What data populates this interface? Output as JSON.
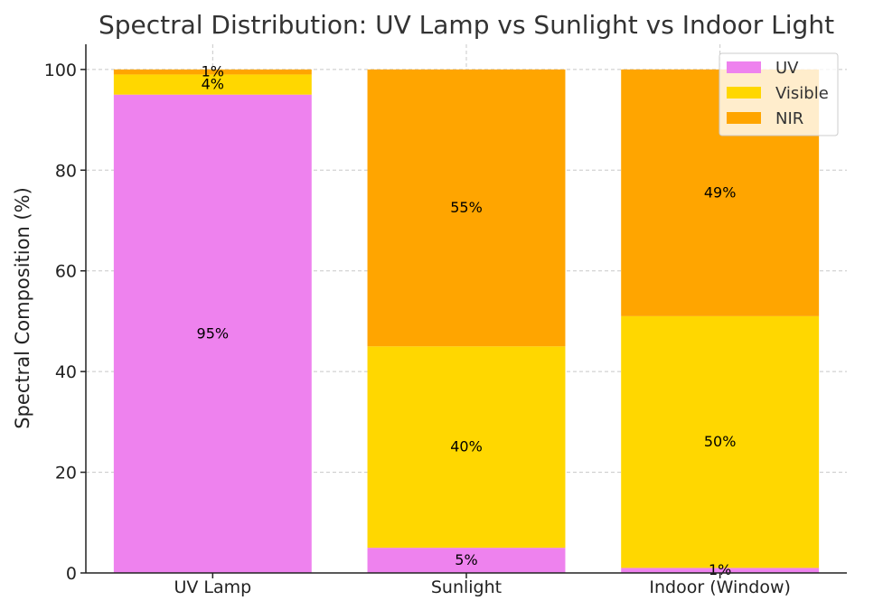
{
  "chart_data": {
    "type": "bar",
    "stacked": true,
    "title": "Spectral Distribution: UV Lamp vs Sunlight vs Indoor Light",
    "xlabel": "",
    "ylabel": "Spectral Composition (%)",
    "ylim": [
      0,
      105
    ],
    "yticks": [
      0,
      20,
      40,
      60,
      80,
      100
    ],
    "grid": true,
    "legend_position": "top-right",
    "categories": [
      "UV Lamp",
      "Sunlight",
      "Indoor (Window)"
    ],
    "series": [
      {
        "name": "UV",
        "color": "#ee82ee",
        "values": [
          95,
          5,
          1
        ],
        "labels": [
          "95%",
          "5%",
          "1%"
        ]
      },
      {
        "name": "Visible",
        "color": "#ffd700",
        "values": [
          4,
          40,
          50
        ],
        "labels": [
          "4%",
          "40%",
          "50%"
        ]
      },
      {
        "name": "NIR",
        "color": "#ffa500",
        "values": [
          1,
          55,
          49
        ],
        "labels": [
          "1%",
          "55%",
          "49%"
        ]
      }
    ]
  }
}
